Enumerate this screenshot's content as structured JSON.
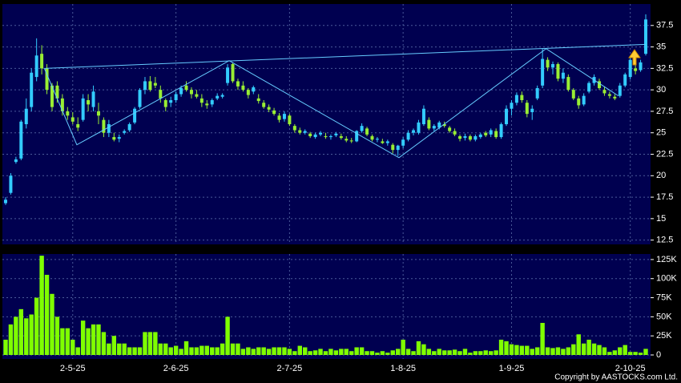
{
  "chart_data": {
    "type": "candlestick",
    "background": "#000050",
    "up_color": "#33ccff",
    "down_color": "#99ee33",
    "volume_color": "#7fff00",
    "grid": true,
    "ylim": [
      12,
      40
    ],
    "yticks": [
      12.5,
      15,
      17.5,
      20,
      22.5,
      25,
      27.5,
      30,
      32.5,
      35,
      37.5
    ],
    "volume_ylim": [
      0,
      137500
    ],
    "volume_yticks": [
      {
        "value": 0,
        "label": "0"
      },
      {
        "value": 25000,
        "label": "25K"
      },
      {
        "value": 50000,
        "label": "50K"
      },
      {
        "value": 75000,
        "label": "75K"
      },
      {
        "value": 100000,
        "label": "100K"
      },
      {
        "value": 125000,
        "label": "125K"
      }
    ],
    "categories": [
      null,
      null,
      null,
      null,
      null,
      null,
      null,
      null,
      null,
      null,
      null,
      null,
      null,
      "2-5-25",
      null,
      null,
      null,
      null,
      null,
      null,
      null,
      null,
      null,
      null,
      null,
      null,
      null,
      null,
      null,
      null,
      null,
      null,
      null,
      "2-6-25",
      null,
      null,
      null,
      null,
      null,
      null,
      null,
      null,
      null,
      null,
      null,
      null,
      null,
      null,
      null,
      null,
      null,
      null,
      null,
      null,
      null,
      "2-7-25",
      null,
      null,
      null,
      null,
      null,
      null,
      null,
      null,
      null,
      null,
      null,
      null,
      null,
      null,
      null,
      null,
      null,
      null,
      null,
      null,
      null,
      "1-8-25",
      null,
      null,
      null,
      null,
      null,
      null,
      null,
      null,
      null,
      null,
      null,
      null,
      null,
      null,
      null,
      null,
      null,
      null,
      null,
      null,
      "1-9-25",
      null,
      null,
      null,
      null,
      null,
      null,
      null,
      null,
      null,
      null,
      null,
      null,
      null,
      null,
      null,
      null,
      null,
      null,
      null,
      null,
      null,
      null,
      "2-10-25",
      null,
      null,
      null
    ],
    "ohlc": [
      [
        16.8,
        17.5,
        16.6,
        17.2
      ],
      [
        18,
        20.3,
        17.8,
        20
      ],
      [
        21.6,
        22.2,
        21.4,
        21.9
      ],
      [
        22,
        26.5,
        21.8,
        26.3
      ],
      [
        26,
        29,
        25.5,
        27.8
      ],
      [
        28,
        32.5,
        27.5,
        32
      ],
      [
        31.5,
        36,
        31,
        34
      ],
      [
        34.2,
        35.2,
        31.8,
        32.5
      ],
      [
        32.5,
        33,
        29.5,
        30
      ],
      [
        30.5,
        30.8,
        27.5,
        28
      ],
      [
        30.5,
        31,
        28.5,
        29
      ],
      [
        29,
        29.5,
        27,
        27.5
      ],
      [
        27.5,
        28,
        26.5,
        27
      ],
      [
        26.8,
        27.4,
        26,
        26.3
      ],
      [
        26,
        26.8,
        25.2,
        25.6
      ],
      [
        26.5,
        29.5,
        26.3,
        29
      ],
      [
        28.8,
        29.5,
        27.5,
        28.3
      ],
      [
        28,
        30.5,
        27.5,
        29.8
      ],
      [
        27.5,
        28.5,
        26,
        27
      ],
      [
        26.5,
        26.8,
        24.5,
        25
      ],
      [
        25,
        26.5,
        24.5,
        26
      ],
      [
        24.5,
        25,
        24,
        24.2
      ],
      [
        24.3,
        24.8,
        23.9,
        24.5
      ],
      [
        25,
        25.4,
        24.8,
        25.2
      ],
      [
        25.3,
        26.2,
        25.1,
        26
      ],
      [
        26.2,
        28,
        26,
        27.8
      ],
      [
        28,
        30.2,
        27.8,
        30
      ],
      [
        30,
        31.5,
        29.5,
        31
      ],
      [
        31,
        31.6,
        29.8,
        30
      ],
      [
        30.8,
        31.5,
        30.2,
        30.5
      ],
      [
        30,
        30.5,
        28.5,
        29
      ],
      [
        28.8,
        29,
        27.5,
        28
      ],
      [
        28.5,
        29.2,
        28,
        28.8
      ],
      [
        28.8,
        29.8,
        28.5,
        29.5
      ],
      [
        29.5,
        30.5,
        29.2,
        30.2
      ],
      [
        30.5,
        31,
        29.8,
        30
      ],
      [
        30,
        30.3,
        29,
        29.5
      ],
      [
        29.5,
        30,
        29,
        29.2
      ],
      [
        29,
        29.5,
        28,
        28.5
      ],
      [
        28.4,
        28.8,
        27.8,
        28.2
      ],
      [
        28.3,
        29,
        28,
        28.8
      ],
      [
        29,
        29.6,
        28.8,
        29.3
      ],
      [
        29.2,
        29.6,
        29,
        29.4
      ],
      [
        30.8,
        33,
        30.5,
        32.6
      ],
      [
        33,
        33.2,
        30.8,
        31
      ],
      [
        31,
        31.3,
        30,
        30.4
      ],
      [
        30.5,
        31,
        29.8,
        30
      ],
      [
        30,
        30.2,
        29,
        29.4
      ],
      [
        29.8,
        30.5,
        29.5,
        30.3
      ],
      [
        29,
        29.5,
        28.4,
        28.7
      ],
      [
        28.5,
        28.8,
        27.8,
        28
      ],
      [
        28,
        28.3,
        27.4,
        27.7
      ],
      [
        27.6,
        27.9,
        27,
        27.2
      ],
      [
        27,
        27.3,
        26.2,
        26.5
      ],
      [
        26.6,
        27.5,
        26.3,
        27.2
      ],
      [
        27,
        27.2,
        25.8,
        26
      ],
      [
        25.8,
        26,
        25,
        25.3
      ],
      [
        25.3,
        25.6,
        24.8,
        25
      ],
      [
        25,
        25.4,
        24.8,
        25.2
      ],
      [
        24.9,
        25.1,
        24.4,
        24.6
      ],
      [
        24.5,
        25,
        24.3,
        24.8
      ],
      [
        24.8,
        25.2,
        24.6,
        25
      ],
      [
        24.6,
        25,
        24.3,
        24.5
      ],
      [
        24.5,
        24.8,
        24.2,
        24.6
      ],
      [
        24.7,
        25.1,
        24.5,
        24.9
      ],
      [
        24.6,
        24.9,
        24.2,
        24.4
      ],
      [
        24.3,
        24.6,
        23.9,
        24.1
      ],
      [
        24.1,
        24.4,
        23.8,
        24
      ],
      [
        24,
        25.3,
        23.9,
        25.2
      ],
      [
        25.2,
        26.1,
        25,
        25.8
      ],
      [
        25.5,
        25.7,
        24.6,
        24.8
      ],
      [
        24.6,
        24.8,
        24,
        24.2
      ],
      [
        24.2,
        24.5,
        23.9,
        24.3
      ],
      [
        24,
        24.3,
        23.7,
        23.8
      ],
      [
        23.8,
        24.2,
        23.5,
        24
      ],
      [
        23.6,
        23.8,
        22.6,
        23
      ],
      [
        23,
        23.6,
        22.3,
        23.5
      ],
      [
        23.5,
        24.5,
        23.2,
        24.2
      ],
      [
        24.2,
        25.3,
        24,
        25
      ],
      [
        25,
        25.5,
        24.7,
        25.3
      ],
      [
        25,
        26.5,
        24.8,
        26.2
      ],
      [
        26,
        28.2,
        25.8,
        27.8
      ],
      [
        26.5,
        26.8,
        25.3,
        25.5
      ],
      [
        25.5,
        26,
        25.2,
        25.8
      ],
      [
        25.6,
        26.4,
        25.4,
        26.2
      ],
      [
        26,
        26.3,
        25.6,
        25.8
      ],
      [
        25.6,
        25.8,
        25,
        25.2
      ],
      [
        25.2,
        25.5,
        24.6,
        24.8
      ],
      [
        24.6,
        24.8,
        24,
        24.3
      ],
      [
        24.4,
        24.9,
        24.1,
        24.6
      ],
      [
        24.6,
        24.8,
        24,
        24.2
      ],
      [
        24.2,
        24.8,
        24,
        24.6
      ],
      [
        24.5,
        25,
        24.3,
        24.8
      ],
      [
        25,
        25.2,
        24.5,
        24.7
      ],
      [
        24.8,
        25.5,
        24.5,
        25.3
      ],
      [
        25.2,
        25.5,
        24.3,
        24.5
      ],
      [
        24.5,
        26.2,
        24.3,
        26
      ],
      [
        26,
        28.2,
        25.8,
        27.8
      ],
      [
        27.8,
        28.8,
        27,
        28.5
      ],
      [
        28.5,
        29.7,
        28.2,
        29.4
      ],
      [
        29.4,
        29.8,
        28.5,
        28.8
      ],
      [
        28.5,
        28.8,
        26.8,
        27.2
      ],
      [
        27.4,
        28.2,
        26.5,
        27.8
      ],
      [
        29,
        30.5,
        28.8,
        30.2
      ],
      [
        30.5,
        34.8,
        30.2,
        33.6
      ],
      [
        33.5,
        33.8,
        32.2,
        32.6
      ],
      [
        32.6,
        33.3,
        31.8,
        33
      ],
      [
        33,
        33.2,
        31,
        31.3
      ],
      [
        31.3,
        32.5,
        30.8,
        32
      ],
      [
        31.5,
        31.8,
        29.8,
        30
      ],
      [
        30,
        30.2,
        28.8,
        29
      ],
      [
        29,
        29.3,
        27.8,
        28.2
      ],
      [
        28.3,
        29.6,
        28.1,
        29.3
      ],
      [
        29.8,
        31,
        29.6,
        30.8
      ],
      [
        30.8,
        31.8,
        30.5,
        31.5
      ],
      [
        31,
        31.3,
        30,
        30.2
      ],
      [
        30,
        30.4,
        29.3,
        29.6
      ],
      [
        29.5,
        29.8,
        29,
        29.3
      ],
      [
        29.2,
        29.5,
        28.8,
        29
      ],
      [
        29.3,
        30.8,
        29.1,
        30.5
      ],
      [
        30.5,
        32,
        30.3,
        31.8
      ],
      [
        31.5,
        33.8,
        31.2,
        33.5
      ],
      [
        32.5,
        33.2,
        31.8,
        32.2
      ],
      [
        32.3,
        33.5,
        32.1,
        33.2
      ],
      [
        34.2,
        38.8,
        34,
        38.2
      ]
    ],
    "volume": [
      20000,
      40000,
      50000,
      60000,
      48000,
      53000,
      75000,
      130000,
      105000,
      80000,
      50000,
      35000,
      35000,
      20000,
      10000,
      45000,
      35000,
      40000,
      40000,
      30000,
      15000,
      25000,
      15000,
      15000,
      10000,
      10000,
      10000,
      30000,
      30000,
      30000,
      15000,
      15000,
      10000,
      12000,
      8000,
      18000,
      10000,
      10000,
      12000,
      12000,
      10000,
      10000,
      15000,
      50000,
      15000,
      15000,
      8000,
      10000,
      8000,
      10000,
      10000,
      8000,
      10000,
      10000,
      10000,
      8000,
      5000,
      12000,
      10000,
      5000,
      6000,
      8000,
      5000,
      8000,
      6000,
      8000,
      8000,
      5000,
      10000,
      10000,
      5000,
      5000,
      3000,
      5000,
      3000,
      6000,
      8000,
      20000,
      8000,
      5000,
      18000,
      14000,
      8000,
      5000,
      8000,
      6000,
      6000,
      7000,
      5000,
      8000,
      3000,
      5000,
      5000,
      6000,
      5000,
      6000,
      20000,
      18000,
      14000,
      13000,
      12000,
      12000,
      8000,
      10000,
      42000,
      10000,
      9000,
      10000,
      8000,
      10000,
      14000,
      27000,
      15000,
      20000,
      15000,
      13000,
      10000,
      4000,
      6000,
      10000,
      13000,
      4000,
      4000,
      3000,
      8000
    ],
    "trendlines": [
      {
        "color": "#66ccff",
        "x": [
          7.5,
          13.8,
          43.3,
          76.2,
          104.7,
          118.7
        ],
        "y": [
          32.5,
          23.6,
          33.4,
          22.1,
          34.8,
          29.3
        ]
      },
      {
        "color": "#66ccff",
        "x": [
          7.5,
          124
        ],
        "y": [
          32.5,
          35.3
        ]
      }
    ],
    "copyright": "Copyright by AASTOCKS.com Ltd."
  }
}
